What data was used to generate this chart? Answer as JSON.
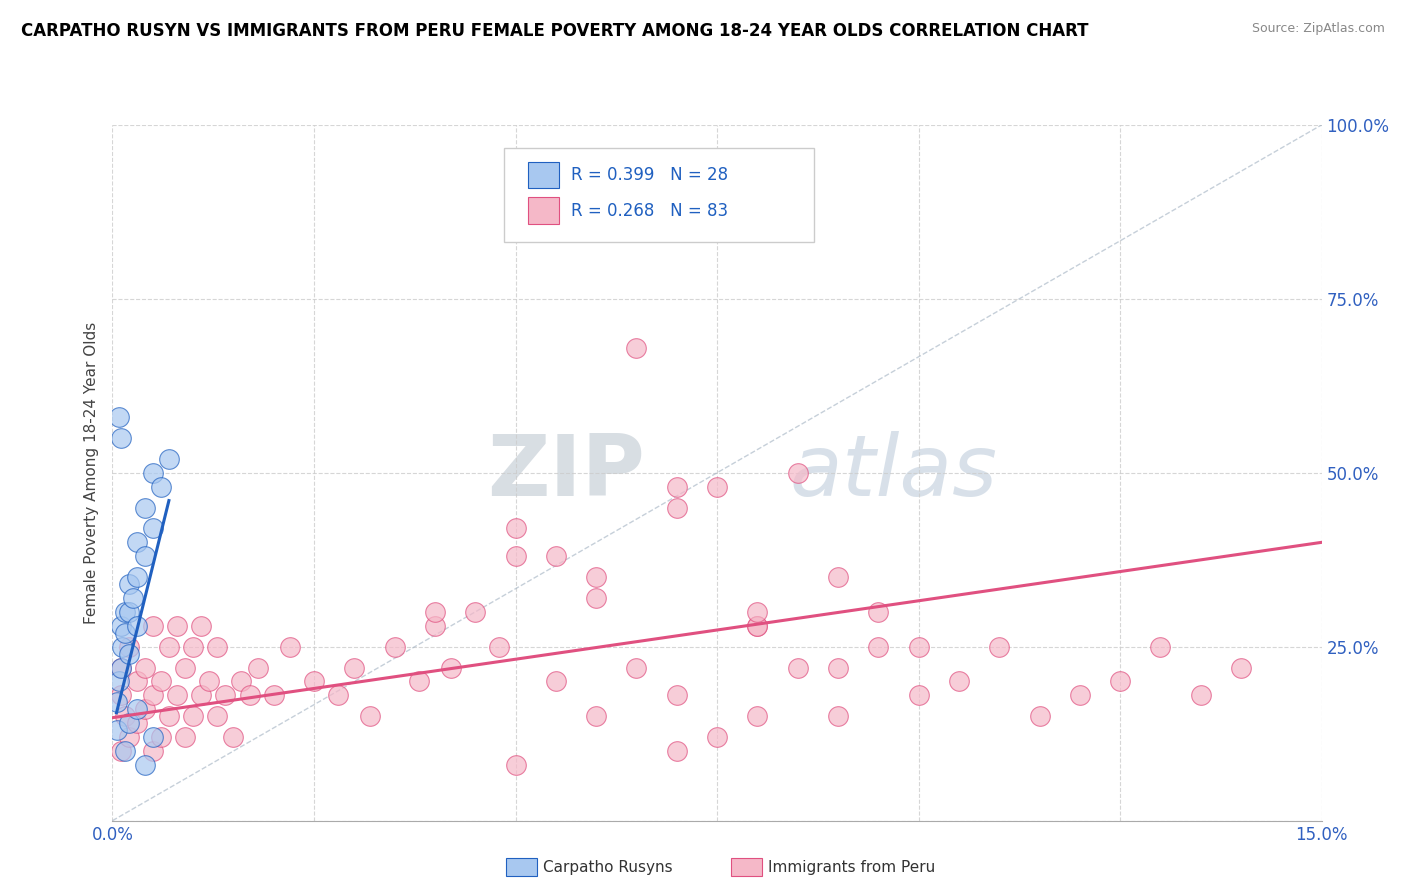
{
  "title": "CARPATHO RUSYN VS IMMIGRANTS FROM PERU FEMALE POVERTY AMONG 18-24 YEAR OLDS CORRELATION CHART",
  "source": "Source: ZipAtlas.com",
  "ylabel": "Female Poverty Among 18-24 Year Olds",
  "xlim": [
    0.0,
    0.15
  ],
  "ylim": [
    0.0,
    1.0
  ],
  "xticks": [
    0.0,
    0.025,
    0.05,
    0.075,
    0.1,
    0.125,
    0.15
  ],
  "xtick_labels": [
    "0.0%",
    "",
    "",
    "",
    "",
    "",
    "15.0%"
  ],
  "ytick_labels": [
    "",
    "25.0%",
    "50.0%",
    "75.0%",
    "100.0%"
  ],
  "yticks": [
    0.0,
    0.25,
    0.5,
    0.75,
    1.0
  ],
  "blue_R": 0.399,
  "blue_N": 28,
  "pink_R": 0.268,
  "pink_N": 83,
  "blue_color": "#a8c8f0",
  "pink_color": "#f5b8c8",
  "blue_line_color": "#2060c0",
  "pink_line_color": "#e05080",
  "legend_label_blue": "Carpatho Rusyns",
  "legend_label_pink": "Immigrants from Peru",
  "watermark_zip": "ZIP",
  "watermark_atlas": "atlas",
  "blue_scatter_x": [
    0.0005,
    0.0008,
    0.001,
    0.001,
    0.0012,
    0.0015,
    0.0015,
    0.002,
    0.002,
    0.002,
    0.0025,
    0.003,
    0.003,
    0.003,
    0.004,
    0.004,
    0.005,
    0.005,
    0.006,
    0.007,
    0.001,
    0.0008,
    0.0006,
    0.0015,
    0.002,
    0.003,
    0.004,
    0.005
  ],
  "blue_scatter_y": [
    0.17,
    0.2,
    0.22,
    0.28,
    0.25,
    0.27,
    0.3,
    0.24,
    0.3,
    0.34,
    0.32,
    0.28,
    0.35,
    0.4,
    0.38,
    0.45,
    0.42,
    0.5,
    0.48,
    0.52,
    0.55,
    0.58,
    0.13,
    0.1,
    0.14,
    0.16,
    0.08,
    0.12
  ],
  "pink_scatter_x": [
    0.001,
    0.001,
    0.001,
    0.0015,
    0.002,
    0.002,
    0.003,
    0.003,
    0.004,
    0.004,
    0.005,
    0.005,
    0.005,
    0.006,
    0.006,
    0.007,
    0.007,
    0.008,
    0.008,
    0.009,
    0.009,
    0.01,
    0.01,
    0.011,
    0.011,
    0.012,
    0.013,
    0.013,
    0.014,
    0.015,
    0.016,
    0.017,
    0.018,
    0.02,
    0.022,
    0.025,
    0.028,
    0.03,
    0.032,
    0.035,
    0.038,
    0.04,
    0.042,
    0.045,
    0.048,
    0.05,
    0.055,
    0.06,
    0.065,
    0.07,
    0.075,
    0.08,
    0.085,
    0.09,
    0.095,
    0.1,
    0.105,
    0.11,
    0.115,
    0.12,
    0.125,
    0.13,
    0.135,
    0.14,
    0.05,
    0.06,
    0.07,
    0.08,
    0.09,
    0.04,
    0.05,
    0.06,
    0.07,
    0.08,
    0.09,
    0.1,
    0.07,
    0.08,
    0.075,
    0.055,
    0.065,
    0.085,
    0.095
  ],
  "pink_scatter_y": [
    0.1,
    0.18,
    0.22,
    0.15,
    0.12,
    0.25,
    0.14,
    0.2,
    0.16,
    0.22,
    0.1,
    0.18,
    0.28,
    0.12,
    0.2,
    0.15,
    0.25,
    0.18,
    0.28,
    0.12,
    0.22,
    0.15,
    0.25,
    0.18,
    0.28,
    0.2,
    0.15,
    0.25,
    0.18,
    0.12,
    0.2,
    0.18,
    0.22,
    0.18,
    0.25,
    0.2,
    0.18,
    0.22,
    0.15,
    0.25,
    0.2,
    0.28,
    0.22,
    0.3,
    0.25,
    0.08,
    0.2,
    0.15,
    0.22,
    0.18,
    0.12,
    0.28,
    0.22,
    0.15,
    0.25,
    0.18,
    0.2,
    0.25,
    0.15,
    0.18,
    0.2,
    0.25,
    0.18,
    0.22,
    0.38,
    0.32,
    0.45,
    0.28,
    0.22,
    0.3,
    0.42,
    0.35,
    0.48,
    0.3,
    0.35,
    0.25,
    0.1,
    0.15,
    0.48,
    0.38,
    0.68,
    0.5,
    0.3
  ],
  "blue_trendline_x": [
    0.0005,
    0.007
  ],
  "blue_trendline_y": [
    0.155,
    0.46
  ],
  "pink_trendline_x": [
    0.0,
    0.15
  ],
  "pink_trendline_y": [
    0.148,
    0.4
  ]
}
